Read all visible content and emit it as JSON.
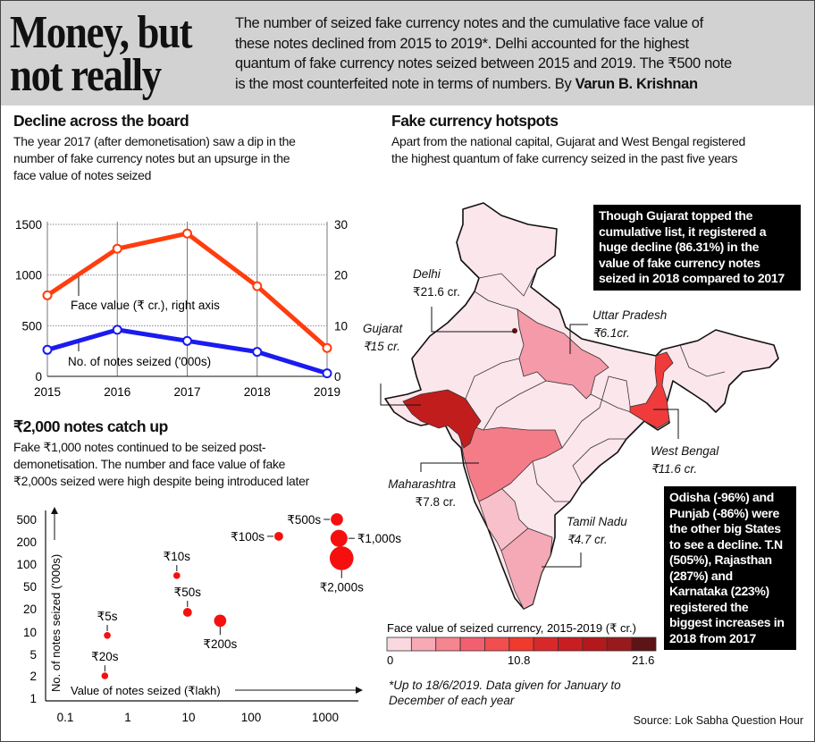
{
  "header": {
    "title_lines": [
      "Money, but",
      "not really"
    ],
    "intro_lines": [
      "The number of seized fake currency notes and the cumulative face value of",
      "these notes declined from 2015 to 2019*. Delhi accounted for the highest",
      "quantum of fake currency notes seized between 2015 and 2019. The ₹500 note",
      "is the most counterfeited note in terms of numbers. By "
    ],
    "byline": "Varun B. Krishnan"
  },
  "section_decline": {
    "title": "Decline across the board",
    "lines": [
      "The year 2017 (after demonetisation) saw a dip in the",
      "number of fake currency notes but an upsurge in the",
      "face value of notes seized"
    ]
  },
  "section_notes": {
    "title": "₹2,000 notes catch up",
    "lines": [
      "Fake ₹1,000 notes continued to be seized post-",
      "demonetisation. The number and face value of fake",
      "₹2,000s seized were high despite being introduced later"
    ]
  },
  "section_hotspots": {
    "title": "Fake currency hotspots",
    "lines": [
      "Apart from the national capital, Gujarat and West Bengal registered",
      "the highest quantum of fake currency seized in the past five years"
    ],
    "box1_lines": [
      "Though Gujarat topped the",
      "cumulative list, it registered a",
      "huge decline (86.31%) in the",
      "value of fake currency notes",
      "seized in 2018 compared to 2017"
    ],
    "box2_lines": [
      "Odisha (-96%) and",
      "Punjab (-86%) were",
      "the other big States",
      "to see a decline. T.N",
      "(505%), Rajasthan",
      "(287%) and",
      "Karnataka (223%)",
      "registered the",
      "biggest increases in",
      "2018 from 2017"
    ],
    "states": [
      {
        "name": "Delhi",
        "value": "₹21.6 cr."
      },
      {
        "name": "Uttar Pradesh",
        "value": "₹6.1cr."
      },
      {
        "name": "Gujarat",
        "value": "₹15 cr."
      },
      {
        "name": "West Bengal",
        "value": "₹11.6 cr."
      },
      {
        "name": "Maharashtra",
        "value": "₹7.8 cr."
      },
      {
        "name": "Tamil Nadu",
        "value": "₹4.7 cr."
      }
    ],
    "legend": {
      "title": "Face value of seized currency, 2015-2019 (₹ cr.)",
      "min": "0",
      "mid": "10.8",
      "max": "21.6",
      "colors": [
        "#f9d9df",
        "#f7aab6",
        "#f5858f",
        "#f26070",
        "#f24d50",
        "#ef3a2e",
        "#d9282a",
        "#c81e22",
        "#b2181c",
        "#981a1d",
        "#5c1416"
      ]
    },
    "colors": {
      "base": "#fbe6eb",
      "gujarat": "#c21d1d",
      "up": "#f49aa8",
      "maharashtra": "#f47c88",
      "west_bengal": "#ef3b3b",
      "tamil_nadu": "#f5a8b5",
      "karnataka": "#f8c0ca",
      "delhi": "#5c1416"
    }
  },
  "footnote": [
    "*Up to 18/6/2019. Data given for January to",
    "December of each year"
  ],
  "source": "Source: Lok Sabha Question Hour",
  "chart_data": [
    {
      "type": "line",
      "title": "Decline across the board",
      "categories": [
        "2015",
        "2016",
        "2017",
        "2018",
        "2019"
      ],
      "series": [
        {
          "name": "Face value (₹ cr.), right axis",
          "axis": "right",
          "color": "#ff3d0e",
          "values": [
            16,
            25.2,
            28.2,
            17.8,
            5.6
          ]
        },
        {
          "name": "No. of notes seized ('000s)",
          "axis": "left",
          "color": "#1b1bf0",
          "values": [
            262,
            460,
            350,
            242,
            30
          ]
        }
      ],
      "left_ticks": [
        "0",
        "500",
        "1000",
        "1500"
      ],
      "right_ticks": [
        "0",
        "10",
        "20",
        "30"
      ],
      "ylim_left": [
        0,
        1500
      ],
      "ylim_right": [
        0,
        30
      ],
      "grid": true
    },
    {
      "type": "scatter",
      "title": "₹2,000 notes catch up",
      "xlabel": "Value of notes seized (₹lakh)",
      "ylabel": "No. of notes seized ('000s)",
      "xscale": "log",
      "yscale": "log",
      "x_ticks": [
        "0.1",
        "1",
        "10",
        "100",
        "1000"
      ],
      "y_ticks": [
        "1",
        "2",
        "5",
        "10",
        "20",
        "50",
        "100",
        "200",
        "500"
      ],
      "color": "#f50f0f",
      "points": [
        {
          "label": "₹5s",
          "x": 0.47,
          "y": 9,
          "size": 1,
          "label_side": "above"
        },
        {
          "label": "₹20s",
          "x": 0.43,
          "y": 2,
          "size": 1,
          "label_side": "above"
        },
        {
          "label": "₹10s",
          "x": 6.4,
          "y": 70,
          "size": 1,
          "label_side": "above"
        },
        {
          "label": "₹50s",
          "x": 9.6,
          "y": 18,
          "size": 1.3,
          "label_side": "above"
        },
        {
          "label": "₹200s",
          "x": 32,
          "y": 14,
          "size": 1.8,
          "label_side": "below"
        },
        {
          "label": "₹100s",
          "x": 236,
          "y": 250,
          "size": 1.3,
          "label_side": "left"
        },
        {
          "label": "₹500s",
          "x": 1435,
          "y": 500,
          "size": 1.8,
          "label_side": "left"
        },
        {
          "label": "₹1,000s",
          "x": 1530,
          "y": 230,
          "size": 2.5,
          "label_side": "right"
        },
        {
          "label": "₹2,000s",
          "x": 1660,
          "y": 120,
          "size": 3.5,
          "label_side": "below"
        }
      ]
    }
  ]
}
